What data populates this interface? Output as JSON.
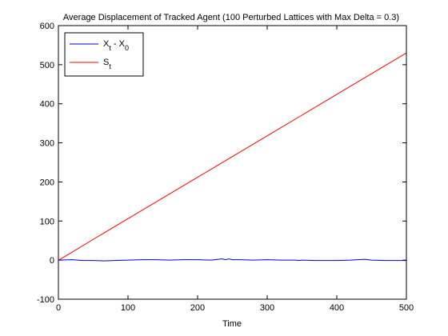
{
  "chart_data": {
    "type": "line",
    "title": "Average Displacement of Tracked Agent (100 Perturbed Lattices with Max Delta = 0.3)",
    "xlabel": "Time",
    "ylabel": "",
    "xlim": [
      0,
      500
    ],
    "ylim": [
      -100,
      600
    ],
    "x_ticks": [
      0,
      100,
      200,
      300,
      400,
      500
    ],
    "y_ticks": [
      -100,
      0,
      100,
      200,
      300,
      400,
      500,
      600
    ],
    "grid": false,
    "legend_position": "top-left",
    "series": [
      {
        "name_main": "X",
        "name_sub1": "t",
        "name_mid": " - X",
        "name_sub2": "0",
        "color": "#0000cc",
        "x": [
          0,
          20,
          35,
          50,
          65,
          80,
          100,
          120,
          140,
          160,
          180,
          200,
          220,
          230,
          235,
          240,
          245,
          250,
          260,
          280,
          300,
          320,
          340,
          345,
          350,
          370,
          400,
          420,
          430,
          440,
          445,
          450,
          470,
          500
        ],
        "y": [
          0,
          1,
          -1,
          -1,
          -2,
          -1,
          0,
          1,
          1,
          0,
          1,
          1,
          0,
          2,
          3,
          1,
          3,
          1,
          1,
          0,
          1,
          0,
          0,
          -1,
          0,
          -1,
          -1,
          0,
          1,
          2,
          1,
          0,
          -1,
          -1
        ]
      },
      {
        "name_main": "S",
        "name_sub1": "t",
        "name_mid": "",
        "name_sub2": "",
        "color": "#ff0000",
        "x": [
          0,
          10,
          50,
          100,
          150,
          200,
          250,
          300,
          350,
          400,
          450,
          500
        ],
        "y": [
          0,
          10,
          53,
          106,
          159,
          212,
          265,
          318,
          371,
          424,
          477,
          530
        ]
      }
    ]
  }
}
